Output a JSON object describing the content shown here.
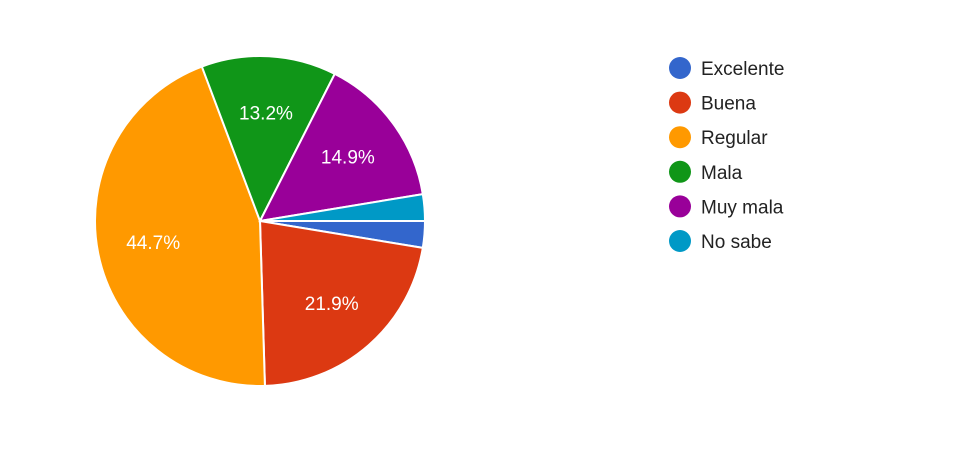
{
  "chart_data": {
    "type": "pie",
    "categories": [
      "Excelente",
      "Buena",
      "Regular",
      "Mala",
      "Muy mala",
      "No sabe"
    ],
    "values": [
      2.6,
      21.9,
      44.7,
      13.2,
      14.9,
      2.6
    ],
    "labels": [
      "",
      "21.9%",
      "44.7%",
      "13.2%",
      "14.9%",
      ""
    ],
    "colors": [
      "#3366cc",
      "#dc3912",
      "#ff9900",
      "#109618",
      "#990099",
      "#0099c6"
    ],
    "start": "3 o'clock",
    "direction": "clockwise",
    "legend": "right"
  }
}
